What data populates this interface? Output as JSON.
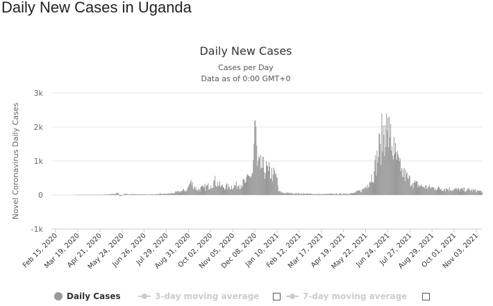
{
  "page": {
    "title": "Daily New Cases in Uganda"
  },
  "colors": {
    "bars": "#999999",
    "grid": "#e6e6e6",
    "legend_inactive": "#cccccc"
  },
  "chart_data": {
    "type": "bar",
    "title": "Daily New Cases",
    "subtitle_lines": [
      "Cases per Day",
      "Data as of 0:00 GMT+0"
    ],
    "xlabel": "",
    "ylabel": "Novel Coronavirus Daily Cases",
    "ylim": [
      -1000,
      3000
    ],
    "yticks": [
      -1000,
      0,
      1000,
      2000,
      3000
    ],
    "ytick_labels": [
      "-1k",
      "0",
      "1k",
      "2k",
      "3k"
    ],
    "x_range": [
      "2020-02-15",
      "2021-11-06"
    ],
    "xtick_labels": [
      "Feb 15, 2020",
      "Mar 19, 2020",
      "Apr 21, 2020",
      "May 24, 2020",
      "Jun 26, 2020",
      "Jul 29, 2020",
      "Aug 31, 2020",
      "Oct 02, 2020",
      "Nov 05, 2020",
      "Dec 08, 2020",
      "Jan 10, 2021",
      "Feb 12, 2021",
      "Mar 17, 2021",
      "Apr 19, 2021",
      "May 22, 2021",
      "Jun 24, 2021",
      "Jul 27, 2021",
      "Aug 29, 2021",
      "Oct 01, 2021",
      "Nov 03, 2021"
    ],
    "grid": true,
    "legend_position": "bottom",
    "series": [
      {
        "name": "Daily Cases",
        "values_by_date": [
          [
            "2020-03-21",
            1
          ],
          [
            "2020-03-28",
            10
          ],
          [
            "2020-04-10",
            8
          ],
          [
            "2020-04-20",
            5
          ],
          [
            "2020-05-01",
            10
          ],
          [
            "2020-05-10",
            20
          ],
          [
            "2020-05-15",
            30
          ],
          [
            "2020-05-22",
            60
          ],
          [
            "2020-05-25",
            -40
          ],
          [
            "2020-06-01",
            30
          ],
          [
            "2020-06-15",
            20
          ],
          [
            "2020-07-01",
            15
          ],
          [
            "2020-07-15",
            20
          ],
          [
            "2020-07-29",
            30
          ],
          [
            "2020-08-10",
            50
          ],
          [
            "2020-08-20",
            100
          ],
          [
            "2020-08-31",
            150
          ],
          [
            "2020-09-05",
            380
          ],
          [
            "2020-09-15",
            150
          ],
          [
            "2020-09-25",
            220
          ],
          [
            "2020-10-05",
            280
          ],
          [
            "2020-10-10",
            420
          ],
          [
            "2020-10-20",
            250
          ],
          [
            "2020-11-01",
            230
          ],
          [
            "2020-11-15",
            300
          ],
          [
            "2020-11-25",
            380
          ],
          [
            "2020-12-01",
            550
          ],
          [
            "2020-12-05",
            650
          ],
          [
            "2020-12-09",
            2200
          ],
          [
            "2020-12-12",
            850
          ],
          [
            "2020-12-20",
            800
          ],
          [
            "2020-12-28",
            700
          ],
          [
            "2021-01-04",
            600
          ],
          [
            "2021-01-10",
            500
          ],
          [
            "2021-01-12",
            100
          ],
          [
            "2021-01-20",
            60
          ],
          [
            "2021-02-01",
            50
          ],
          [
            "2021-02-15",
            40
          ],
          [
            "2021-03-01",
            30
          ],
          [
            "2021-03-17",
            25
          ],
          [
            "2021-04-01",
            30
          ],
          [
            "2021-04-19",
            40
          ],
          [
            "2021-05-01",
            50
          ],
          [
            "2021-05-15",
            150
          ],
          [
            "2021-05-22",
            300
          ],
          [
            "2021-06-01",
            700
          ],
          [
            "2021-06-10",
            1500
          ],
          [
            "2021-06-17",
            2050
          ],
          [
            "2021-06-20",
            1900
          ],
          [
            "2021-06-24",
            1700
          ],
          [
            "2021-07-01",
            1200
          ],
          [
            "2021-07-10",
            700
          ],
          [
            "2021-07-20",
            500
          ],
          [
            "2021-07-27",
            350
          ],
          [
            "2021-08-10",
            250
          ],
          [
            "2021-08-29",
            200
          ],
          [
            "2021-09-15",
            180
          ],
          [
            "2021-10-01",
            160
          ],
          [
            "2021-10-15",
            150
          ],
          [
            "2021-11-01",
            120
          ],
          [
            "2021-11-06",
            100
          ]
        ]
      },
      {
        "name": "3-day moving average",
        "visible": false
      },
      {
        "name": "7-day moving average",
        "visible": false
      }
    ]
  }
}
